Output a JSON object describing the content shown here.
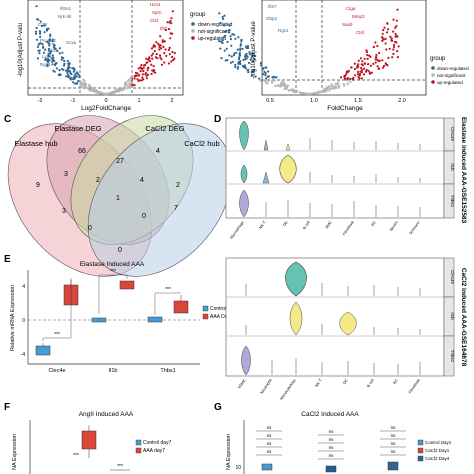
{
  "figure": {
    "panels": {
      "A": {
        "xlabel": "Log2FoldChange",
        "ylabel": "-log10(Adjust P-valu",
        "xticks": [
          "-2",
          "-1",
          "0",
          "1",
          "2"
        ],
        "legend_title": "group",
        "legend_items": [
          "down-regulated",
          "not-significant",
          "up-regulated"
        ],
        "gene_labels_left": [
          "Ifitm1",
          "Nrk-Irk",
          "Cd5l",
          "Pcolce2",
          "Scxa",
          "Ckxa",
          "Lyve1",
          "Rgs1"
        ],
        "gene_labels_right": [
          "Hcn1",
          "Sprn",
          "Ctsf",
          "Ifit2"
        ]
      },
      "B": {
        "xlabel": "FoldChange",
        "ylabel": "-log10(Adjust P-value",
        "xticks": [
          "0.5",
          "1.0",
          "1.5",
          "2.0"
        ],
        "legend_title": "group",
        "legend_items": [
          "down-regulated",
          "not-significant",
          "up-regulated"
        ],
        "gene_labels_left": [
          "Ifi27",
          "Gbp2",
          "Rgs1"
        ],
        "gene_labels_right": [
          "Ciga",
          "Mmp3",
          "Saa3",
          "Ctsf"
        ]
      },
      "C": {
        "letter": "C",
        "set_labels": [
          "Elastase DEG",
          "CaCl2 DEG",
          "Elastase hub",
          "CaCl2 hub"
        ],
        "counts": [
          "9",
          "66",
          "27",
          "4",
          "3",
          "2",
          "4",
          "2",
          "3",
          "1",
          "0",
          "7",
          "0",
          "0"
        ]
      },
      "D": {
        "letter": "D",
        "side_label": "Elastase induced AAA-GSE152583",
        "genes": [
          "Clec4e",
          "Il1b",
          "Thbs1"
        ],
        "cell_types": [
          "Macrophage",
          "NK-T",
          "DC",
          "B cell",
          "SMC",
          "Fibroblast",
          "EC",
          "Neutro",
          "Schwann"
        ]
      },
      "E": {
        "letter": "E",
        "title": "Elastase Induced AAA",
        "ylabel": "Relative mRNA Expression",
        "yticks": [
          "-4",
          "0",
          "4"
        ],
        "categories": [
          "Clec4e",
          "Il1b",
          "Thbs1"
        ],
        "legend_items": [
          "Control Day7",
          "AAA Day7"
        ],
        "sig": [
          "***",
          "***",
          "***"
        ]
      },
      "D2": {
        "side_label": "CaCl2 induced AAA-GSE164678",
        "genes": [
          "Clec4e",
          "Il1b",
          "Thbs1"
        ],
        "cell_types": [
          "VSMC",
          "Neutrophil",
          "Monocyte/Mac",
          "NK-T",
          "DC",
          "B cell",
          "EC",
          "Fibroblast"
        ]
      },
      "F": {
        "letter": "F",
        "title": "AngII Induced AAA",
        "ylabel": "NA Expression",
        "legend_items": [
          "Control day7",
          "AAA day7"
        ],
        "sig": [
          "***",
          "***"
        ]
      },
      "G": {
        "letter": "G",
        "title": "CaCl2 Induced AAA",
        "ylabel": "NA Expression",
        "ytick": "10",
        "legend_items": [
          "Control Day1",
          "CaCl2 Day1",
          "CaCl2 Day4"
        ],
        "sig": [
          "ns",
          "ns",
          "ns",
          "ns",
          "ns",
          "ns",
          "ns",
          "ns",
          "ns",
          "ns",
          "ns",
          "ns"
        ]
      }
    }
  },
  "colors": {
    "down": "#2f6690",
    "ns": "#b5b5b5",
    "up": "#c1121f",
    "control": "#4a9bd1",
    "aaa": "#d9463b",
    "venn1": "#f1c4c8",
    "venn2": "#d9b8c4",
    "venn3": "#c8d8a4",
    "venn4": "#b8cde6"
  }
}
